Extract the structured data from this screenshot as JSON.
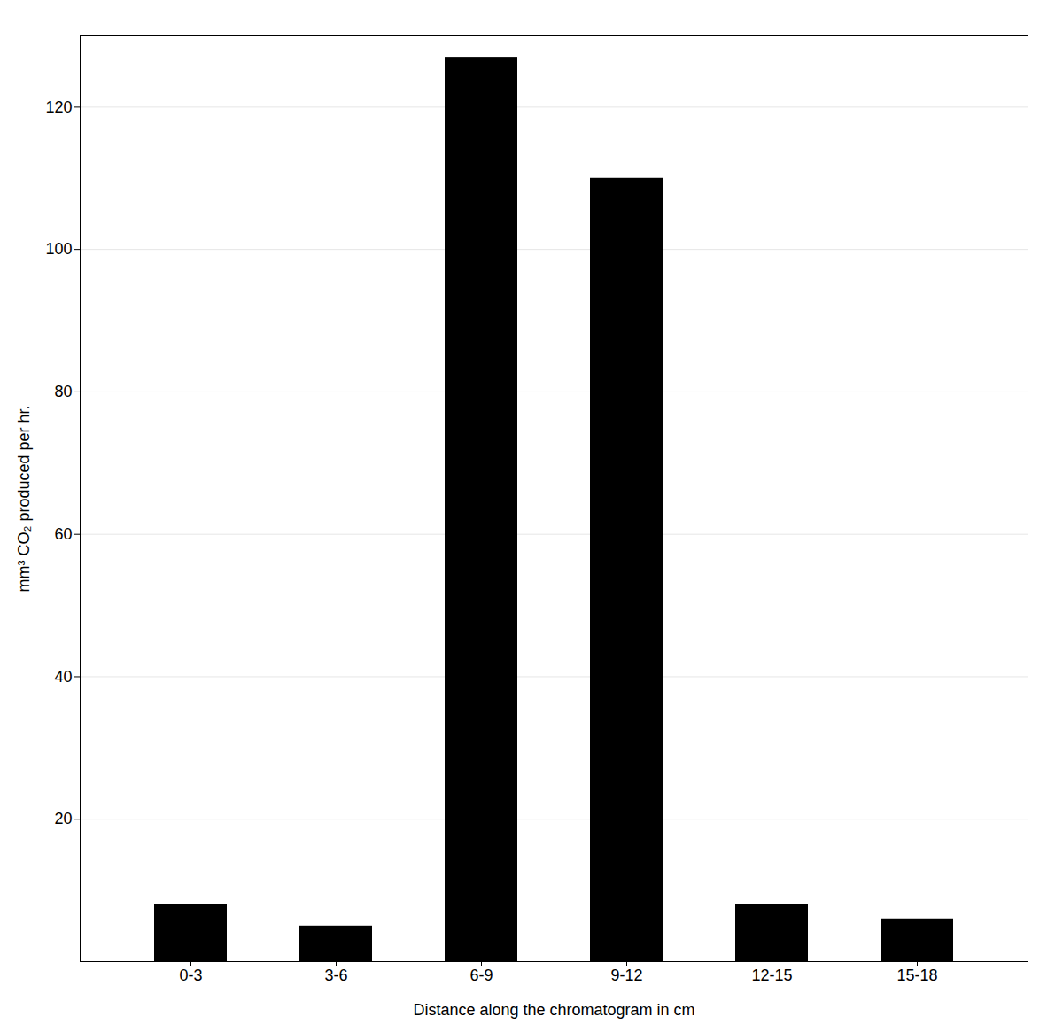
{
  "chart_data": {
    "type": "bar",
    "xlabel": "Distance along the chromatogram in cm",
    "ylabel": "mm³ CO₂ produced per hr.",
    "categories": [
      "0-3",
      "3-6",
      "6-9",
      "9-12",
      "12-15",
      "15-18"
    ],
    "values": [
      8,
      5,
      127,
      110,
      8,
      6
    ],
    "ylim": [
      0,
      130
    ],
    "yticks": [
      20,
      40,
      60,
      80,
      100,
      120
    ],
    "grid": true
  }
}
